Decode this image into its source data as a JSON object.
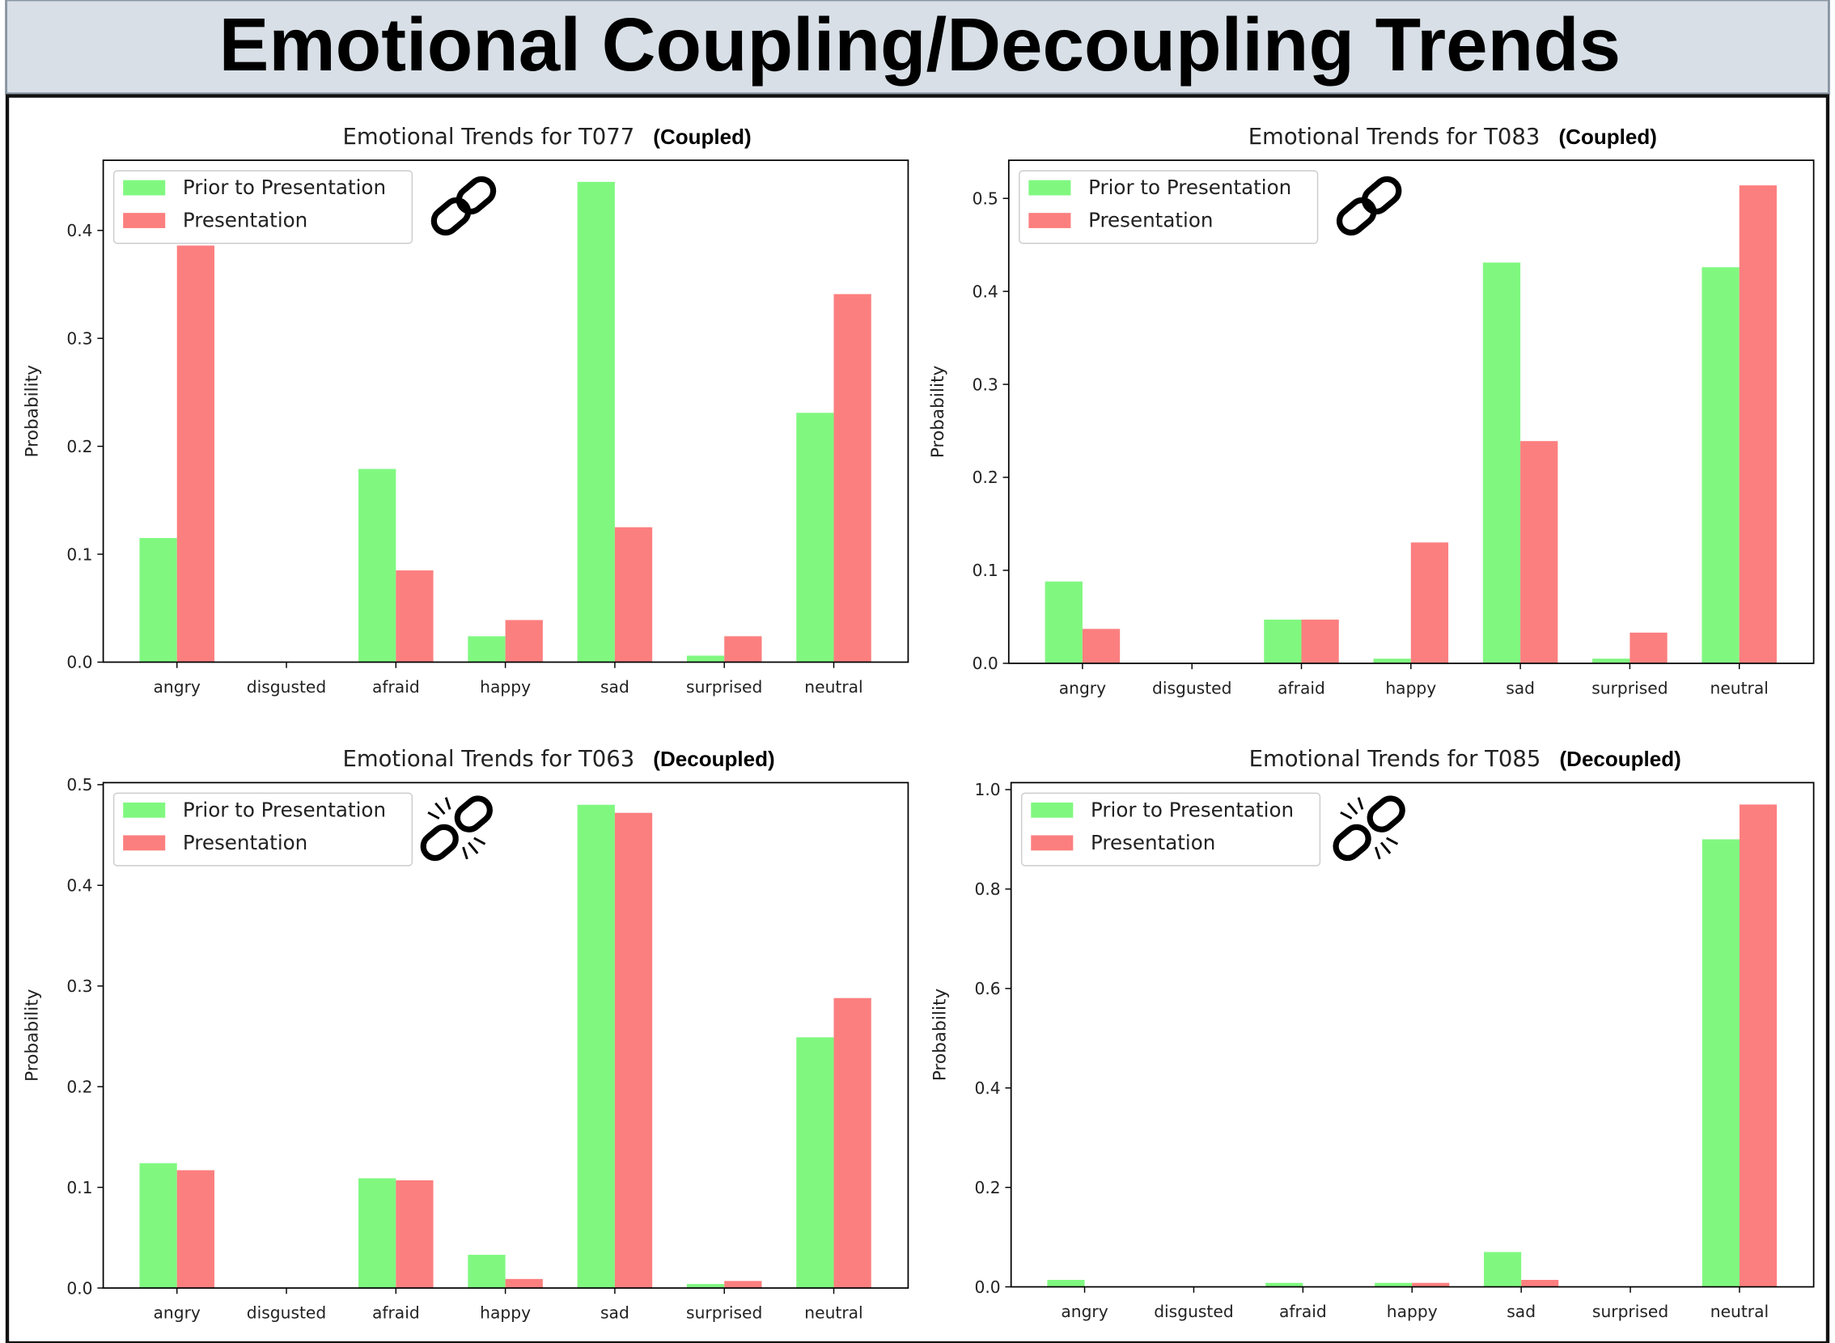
{
  "title": "Emotional Coupling/Decoupling Trends",
  "chart_data": [
    {
      "type": "bar",
      "title": "Emotional Trends for T077",
      "tag": "(Coupled)",
      "ylabel": "Probability",
      "categories": [
        "angry",
        "disgusted",
        "afraid",
        "happy",
        "sad",
        "surprised",
        "neutral"
      ],
      "series": [
        {
          "name": "Prior to Presentation",
          "color": "#80f880",
          "values": [
            0.115,
            0,
            0.179,
            0.024,
            0.445,
            0.006,
            0.231
          ]
        },
        {
          "name": "Presentation",
          "color": "#fc7f7f",
          "values": [
            0.386,
            0,
            0.085,
            0.039,
            0.125,
            0.024,
            0.341
          ]
        }
      ],
      "ylim": [
        0,
        0.465
      ],
      "yticks": [
        {
          "value": 0,
          "label": "0.0"
        },
        0.1,
        0.2,
        0.3,
        0.4
      ],
      "legend": "upper left"
    },
    {
      "type": "bar",
      "title": "Emotional Trends for T083",
      "tag": "(Coupled)",
      "ylabel": "Probability",
      "categories": [
        "angry",
        "disgusted",
        "afraid",
        "happy",
        "sad",
        "surprised",
        "neutral"
      ],
      "series": [
        {
          "name": "Prior to Presentation",
          "color": "#80f880",
          "values": [
            0.088,
            0,
            0.047,
            0.005,
            0.431,
            0.005,
            0.426
          ]
        },
        {
          "name": "Presentation",
          "color": "#fc7f7f",
          "values": [
            0.037,
            0,
            0.047,
            0.13,
            0.239,
            0.033,
            0.514
          ]
        }
      ],
      "ylim": [
        0,
        0.541
      ],
      "yticks": [
        {
          "value": 0,
          "label": "0.0"
        },
        0.1,
        0.2,
        0.3,
        0.4,
        0.5
      ],
      "legend": "upper left"
    },
    {
      "type": "bar",
      "title": "Emotional Trends for T063",
      "tag": "(Decoupled)",
      "ylabel": "Probability",
      "categories": [
        "angry",
        "disgusted",
        "afraid",
        "happy",
        "sad",
        "surprised",
        "neutral"
      ],
      "series": [
        {
          "name": "Prior to Presentation",
          "color": "#80f880",
          "values": [
            0.124,
            0,
            0.109,
            0.033,
            0.48,
            0.004,
            0.249
          ]
        },
        {
          "name": "Presentation",
          "color": "#fc7f7f",
          "values": [
            0.117,
            0,
            0.107,
            0.009,
            0.472,
            0.007,
            0.288
          ]
        }
      ],
      "ylim": [
        0,
        0.502
      ],
      "yticks": [
        {
          "value": 0,
          "label": "0.0"
        },
        0.1,
        0.2,
        0.3,
        0.4,
        0.5
      ],
      "legend": "upper left"
    },
    {
      "type": "bar",
      "title": "Emotional Trends for T085",
      "tag": "(Decoupled)",
      "ylabel": "Probability",
      "categories": [
        "angry",
        "disgusted",
        "afraid",
        "happy",
        "sad",
        "surprised",
        "neutral"
      ],
      "series": [
        {
          "name": "Prior to Presentation",
          "color": "#80f880",
          "values": [
            0.014,
            0,
            0.008,
            0.008,
            0.07,
            0,
            0.9
          ]
        },
        {
          "name": "Presentation",
          "color": "#fc7f7f",
          "values": [
            0,
            0,
            0,
            0.008,
            0.014,
            0,
            0.97
          ]
        }
      ],
      "ylim": [
        0,
        1.014
      ],
      "yticks": [
        {
          "value": 0,
          "label": "0.0"
        },
        0.2,
        0.4,
        0.6,
        0.8,
        {
          "value": 1,
          "label": "1.0"
        }
      ],
      "legend": "upper left"
    }
  ]
}
